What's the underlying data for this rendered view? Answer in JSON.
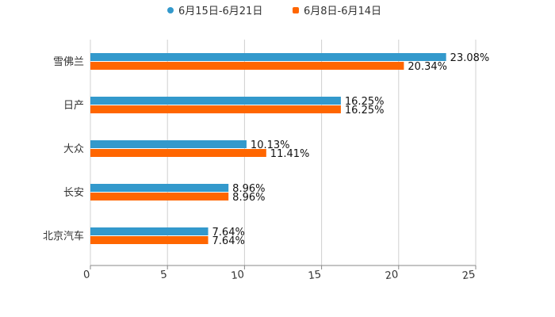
{
  "chart_data": {
    "type": "bar",
    "orientation": "horizontal",
    "title": "",
    "xlabel": "",
    "ylabel": "",
    "xlim": [
      0,
      25
    ],
    "xticks": [
      0,
      5,
      10,
      15,
      20,
      25
    ],
    "grid": true,
    "legend_position": "top-center",
    "categories": [
      "雪佛兰",
      "日产",
      "大众",
      "长安",
      "北京汽车"
    ],
    "series": [
      {
        "name": "6月15日-6月21日",
        "color": "#3399cc",
        "values": [
          23.08,
          16.25,
          10.13,
          8.96,
          7.64
        ],
        "labels": [
          "23.08%",
          "16.25%",
          "10.13%",
          "8.96%",
          "7.64%"
        ]
      },
      {
        "name": "6月8日-6月14日",
        "color": "#ff6600",
        "values": [
          20.34,
          16.25,
          11.41,
          8.96,
          7.64
        ],
        "labels": [
          "20.34%",
          "16.25%",
          "11.41%",
          "8.96%",
          "7.64%"
        ]
      }
    ]
  }
}
